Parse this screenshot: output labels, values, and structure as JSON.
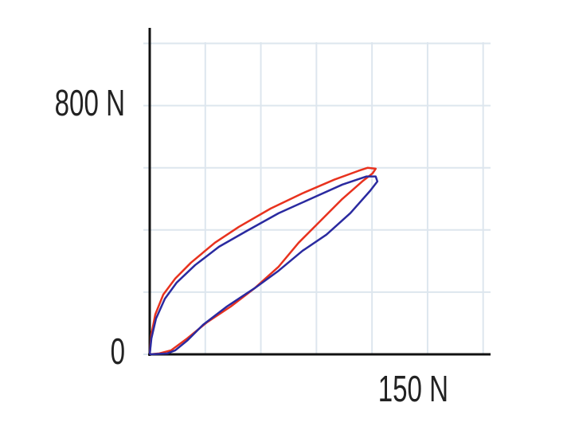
{
  "chart_data": {
    "type": "line",
    "xlim": [
      0,
      184
    ],
    "ylim": [
      0,
      1050
    ],
    "xticks": [
      {
        "value": 150,
        "label": "150 N"
      }
    ],
    "yticks": [
      0,
      {
        "value": 800,
        "label": "800 N"
      }
    ],
    "xgrid": [
      0,
      30,
      60,
      90,
      120,
      150,
      180
    ],
    "ygrid": [
      0,
      200,
      400,
      600,
      800,
      1000
    ],
    "grid": true,
    "series": [
      {
        "color": "#e8321e",
        "x": [
          0,
          0.9,
          3,
          7.3,
          13.8,
          22.3,
          35.2,
          48.1,
          65.3,
          82.5,
          99.7,
          112.6,
          117.7,
          122,
          120.3,
          114.7,
          104,
          91.1,
          80.4,
          69.6,
          56.7,
          43.8,
          30.9,
          20.2,
          11.6,
          5.2,
          0
        ],
        "values": [
          0,
          64,
          128,
          192,
          244,
          295,
          359,
          410,
          469,
          518,
          562,
          590,
          600,
          597,
          582,
          556,
          500,
          423,
          359,
          282,
          213,
          154,
          103,
          51,
          13,
          3,
          0
        ]
      },
      {
        "color": "#2a2aa0",
        "x": [
          0,
          0.9,
          3.4,
          8.2,
          14.6,
          24.5,
          37.4,
          52.4,
          69.6,
          86.8,
          104,
          116.9,
          122,
          122.9,
          119,
          108.3,
          95.4,
          82.5,
          69.6,
          56.7,
          41.7,
          28.8,
          20.2,
          13.8,
          9.5,
          0
        ],
        "values": [
          0,
          51,
          115,
          179,
          231,
          287,
          346,
          397,
          454,
          500,
          546,
          572,
          572,
          556,
          526,
          454,
          385,
          333,
          269,
          213,
          154,
          95,
          44,
          13,
          3,
          0
        ]
      }
    ]
  }
}
